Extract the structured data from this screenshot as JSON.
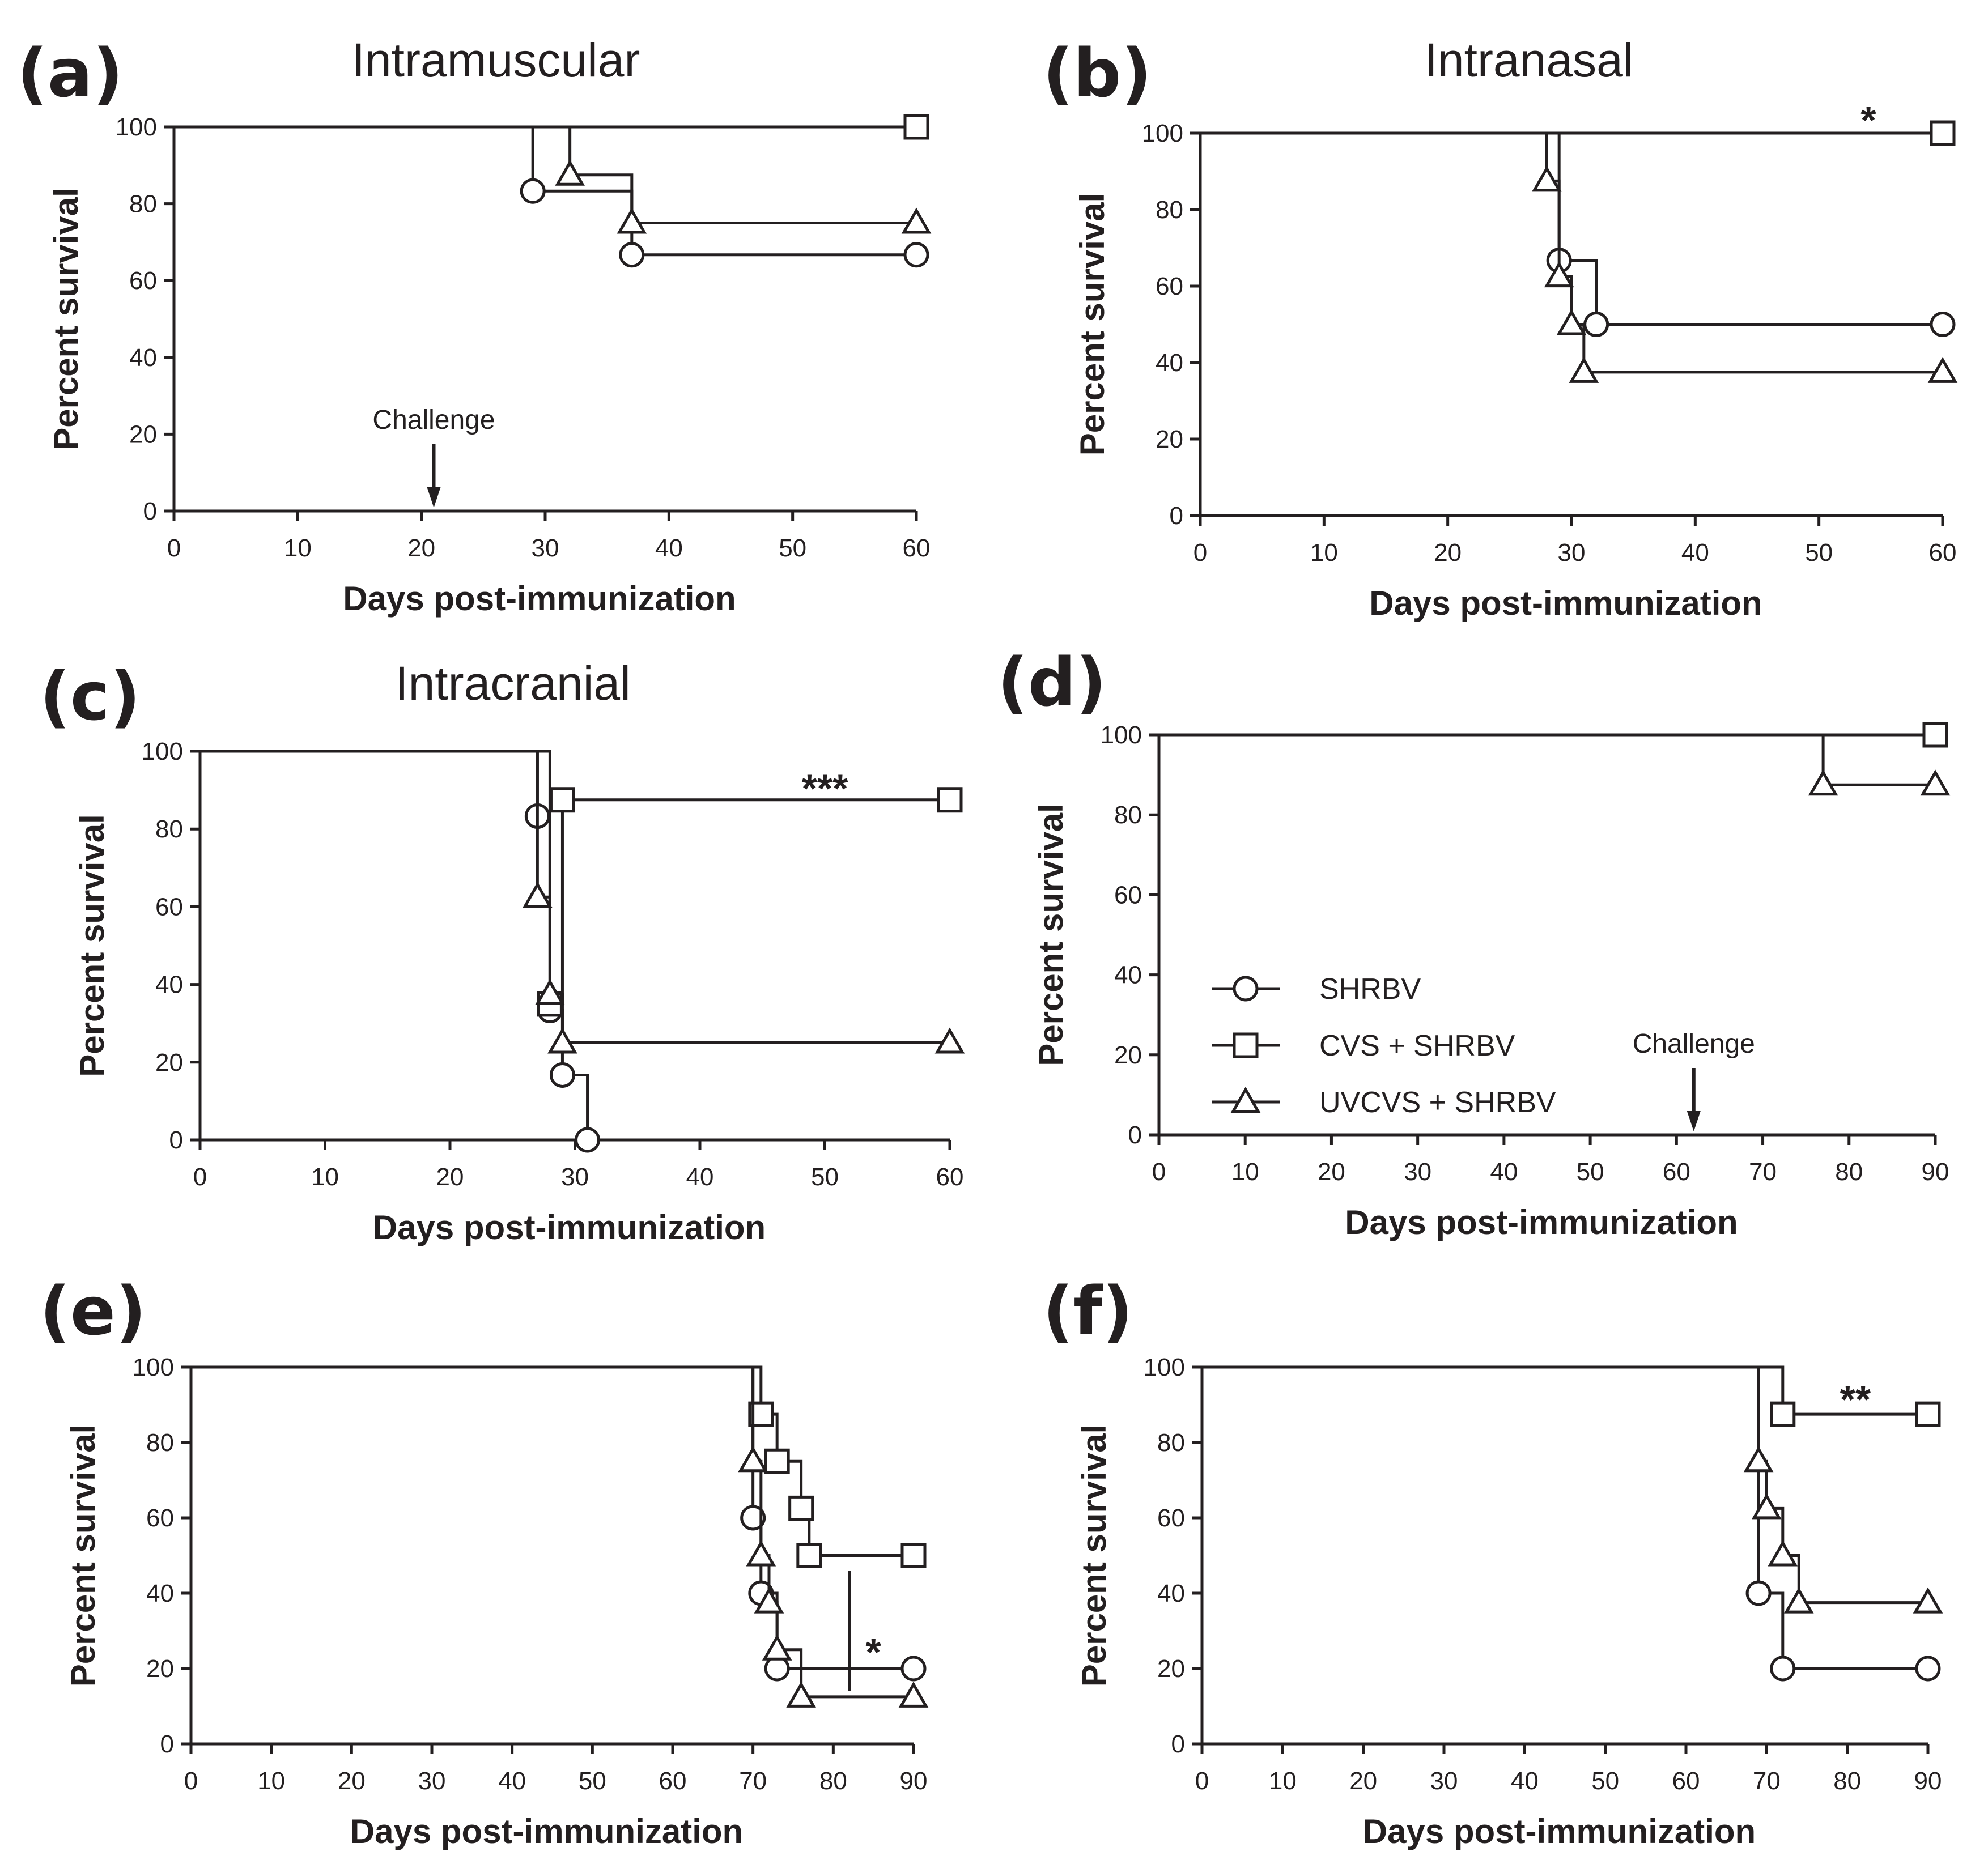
{
  "chart_data": [
    {
      "id": "a",
      "type": "line",
      "panel_label": "(a)",
      "title": "Intramuscular",
      "xlabel": "Days post-immunization",
      "ylabel": "Percent survival",
      "xlim": [
        0,
        60
      ],
      "ylim": [
        0,
        100
      ],
      "xticks": [
        "0",
        "10",
        "20",
        "30",
        "40",
        "50",
        "60"
      ],
      "yticks": [
        "0",
        "20",
        "40",
        "60",
        "80",
        "100"
      ],
      "challenge": {
        "label": "Challenge",
        "day": 21
      },
      "annotation": null,
      "series": [
        {
          "name": "SHRBV",
          "marker": "circle",
          "points": [
            [
              0,
              100
            ],
            [
              29,
              83.3
            ],
            [
              37,
              66.7
            ],
            [
              60,
              66.7
            ]
          ]
        },
        {
          "name": "CVS + SHRBV",
          "marker": "square",
          "points": [
            [
              0,
              100
            ],
            [
              60,
              100
            ]
          ]
        },
        {
          "name": "UVCVS + SHRBV",
          "marker": "triangle",
          "points": [
            [
              0,
              100
            ],
            [
              32,
              87.5
            ],
            [
              37,
              75
            ],
            [
              60,
              75
            ]
          ]
        }
      ]
    },
    {
      "id": "b",
      "type": "line",
      "panel_label": "(b)",
      "title": "Intranasal",
      "xlabel": "Days post-immunization",
      "ylabel": "Percent survival",
      "xlim": [
        0,
        60
      ],
      "ylim": [
        0,
        100
      ],
      "xticks": [
        "0",
        "10",
        "20",
        "30",
        "40",
        "50",
        "60"
      ],
      "yticks": [
        "0",
        "20",
        "40",
        "60",
        "80",
        "100"
      ],
      "challenge": null,
      "annotation": {
        "text": "*",
        "x": 54,
        "y": 104
      },
      "series": [
        {
          "name": "SHRBV",
          "marker": "circle",
          "points": [
            [
              0,
              100
            ],
            [
              29,
              66.7
            ],
            [
              32,
              50
            ],
            [
              60,
              50
            ]
          ]
        },
        {
          "name": "CVS + SHRBV",
          "marker": "square",
          "points": [
            [
              0,
              100
            ],
            [
              60,
              100
            ]
          ]
        },
        {
          "name": "UVCVS + SHRBV",
          "marker": "triangle",
          "points": [
            [
              0,
              100
            ],
            [
              28,
              87.5
            ],
            [
              29,
              62.5
            ],
            [
              30,
              50
            ],
            [
              31,
              37.5
            ],
            [
              60,
              37.5
            ]
          ]
        }
      ]
    },
    {
      "id": "c",
      "type": "line",
      "panel_label": "(c)",
      "title": "Intracranial",
      "xlabel": "Days post-immunization",
      "ylabel": "Percent survival",
      "xlim": [
        0,
        60
      ],
      "ylim": [
        0,
        100
      ],
      "xticks": [
        "0",
        "10",
        "20",
        "30",
        "40",
        "50",
        "60"
      ],
      "yticks": [
        "0",
        "20",
        "40",
        "60",
        "80",
        "100"
      ],
      "challenge": null,
      "annotation": {
        "text": "***",
        "x": 50,
        "y": 91
      },
      "series": [
        {
          "name": "SHRBV",
          "marker": "circle",
          "points": [
            [
              0,
              100
            ],
            [
              27,
              83.3
            ],
            [
              28,
              33.3
            ],
            [
              29,
              16.7
            ],
            [
              31,
              0
            ]
          ]
        },
        {
          "name": "CVS + SHRBV",
          "marker": "square",
          "points": [
            [
              0,
              100
            ],
            [
              28,
              35
            ],
            [
              29,
              87.5
            ],
            [
              60,
              87.5
            ]
          ]
        },
        {
          "name": "UVCVS + SHRBV",
          "marker": "triangle",
          "points": [
            [
              0,
              100
            ],
            [
              27,
              62.5
            ],
            [
              28,
              37.5
            ],
            [
              29,
              25
            ],
            [
              60,
              25
            ]
          ]
        }
      ]
    },
    {
      "id": "d",
      "type": "line",
      "panel_label": "(d)",
      "title": "",
      "xlabel": "Days post-immunization",
      "ylabel": "Percent survival",
      "xlim": [
        0,
        90
      ],
      "ylim": [
        0,
        100
      ],
      "xticks": [
        "0",
        "10",
        "20",
        "30",
        "40",
        "50",
        "60",
        "70",
        "80",
        "90"
      ],
      "yticks": [
        "0",
        "20",
        "40",
        "60",
        "80",
        "100"
      ],
      "challenge": {
        "label": "Challenge",
        "day": 62
      },
      "annotation": null,
      "series": [
        {
          "name": "SHRBV",
          "marker": "circle",
          "points": [
            [
              0,
              100
            ],
            [
              90,
              100
            ]
          ]
        },
        {
          "name": "CVS + SHRBV",
          "marker": "square",
          "points": [
            [
              0,
              100
            ],
            [
              90,
              100
            ]
          ]
        },
        {
          "name": "UVCVS + SHRBV",
          "marker": "triangle",
          "points": [
            [
              0,
              100
            ],
            [
              77,
              87.5
            ],
            [
              90,
              87.5
            ]
          ]
        }
      ],
      "legend": {
        "placement": "lower-left",
        "entries": [
          {
            "label": "SHRBV",
            "marker": "circle"
          },
          {
            "label": "CVS + SHRBV",
            "marker": "square"
          },
          {
            "label": "UVCVS + SHRBV",
            "marker": "triangle"
          }
        ]
      }
    },
    {
      "id": "e",
      "type": "line",
      "panel_label": "(e)",
      "title": "",
      "xlabel": "Days post-immunization",
      "ylabel": "Percent survival",
      "xlim": [
        0,
        90
      ],
      "ylim": [
        0,
        100
      ],
      "xticks": [
        "0",
        "10",
        "20",
        "30",
        "40",
        "50",
        "60",
        "70",
        "80",
        "90"
      ],
      "yticks": [
        "0",
        "20",
        "40",
        "60",
        "80",
        "100"
      ],
      "challenge": null,
      "annotation": {
        "text": "*",
        "x": 85,
        "y": 25
      },
      "bracket": {
        "day": 82,
        "from": 14,
        "to": 46
      },
      "series": [
        {
          "name": "SHRBV",
          "marker": "circle",
          "points": [
            [
              0,
              100
            ],
            [
              70,
              60
            ],
            [
              71,
              40
            ],
            [
              73,
              20
            ],
            [
              90,
              20
            ]
          ]
        },
        {
          "name": "CVS + SHRBV",
          "marker": "square",
          "points": [
            [
              0,
              100
            ],
            [
              71,
              87.5
            ],
            [
              73,
              75
            ],
            [
              76,
              62.5
            ],
            [
              77,
              50
            ],
            [
              90,
              50
            ]
          ]
        },
        {
          "name": "UVCVS + SHRBV",
          "marker": "triangle",
          "points": [
            [
              0,
              100
            ],
            [
              70,
              75
            ],
            [
              71,
              50
            ],
            [
              72,
              37.5
            ],
            [
              73,
              25
            ],
            [
              76,
              12.5
            ],
            [
              90,
              12.5
            ]
          ]
        }
      ]
    },
    {
      "id": "f",
      "type": "line",
      "panel_label": "(f)",
      "title": "",
      "xlabel": "Days post-immunization",
      "ylabel": "Percent survival",
      "xlim": [
        0,
        90
      ],
      "ylim": [
        0,
        100
      ],
      "xticks": [
        "0",
        "10",
        "20",
        "30",
        "40",
        "50",
        "60",
        "70",
        "80",
        "90"
      ],
      "yticks": [
        "0",
        "20",
        "40",
        "60",
        "80",
        "100"
      ],
      "challenge": null,
      "annotation": {
        "text": "**",
        "x": 81,
        "y": 92
      },
      "series": [
        {
          "name": "SHRBV",
          "marker": "circle",
          "points": [
            [
              0,
              100
            ],
            [
              69,
              40
            ],
            [
              72,
              20
            ],
            [
              90,
              20
            ]
          ]
        },
        {
          "name": "CVS + SHRBV",
          "marker": "square",
          "points": [
            [
              0,
              100
            ],
            [
              72,
              87.5
            ],
            [
              90,
              87.5
            ]
          ]
        },
        {
          "name": "UVCVS + SHRBV",
          "marker": "triangle",
          "points": [
            [
              0,
              100
            ],
            [
              69,
              75
            ],
            [
              70,
              62.5
            ],
            [
              72,
              50
            ],
            [
              74,
              37.5
            ],
            [
              90,
              37.5
            ]
          ]
        }
      ]
    }
  ]
}
